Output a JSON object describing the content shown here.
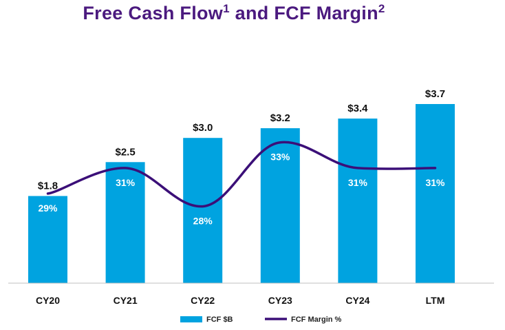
{
  "chart_data": {
    "type": "bar",
    "title_main": "Free Cash Flow",
    "title_sup1": "1",
    "title_mid": " and FCF Margin",
    "title_sup2": "2",
    "categories": [
      "CY20",
      "CY21",
      "CY22",
      "CY23",
      "CY24",
      "LTM"
    ],
    "series": [
      {
        "name": "FCF $B",
        "type": "bar",
        "color": "#00a3e0",
        "values": [
          1.8,
          2.5,
          3.0,
          3.2,
          3.4,
          3.7
        ],
        "labels": [
          "$1.8",
          "$2.5",
          "$3.0",
          "$3.2",
          "$3.4",
          "$3.7"
        ]
      },
      {
        "name": "FCF Margin %",
        "type": "line",
        "color": "#3b0f78",
        "values": [
          29,
          31,
          28,
          33,
          31,
          31
        ],
        "labels": [
          "29%",
          "31%",
          "28%",
          "33%",
          "31%",
          "31%"
        ]
      }
    ],
    "bar_ylim": [
      0,
      3.7
    ],
    "line_ylim": [
      22,
      36
    ],
    "grid": false,
    "legend_position": "bottom-center"
  }
}
